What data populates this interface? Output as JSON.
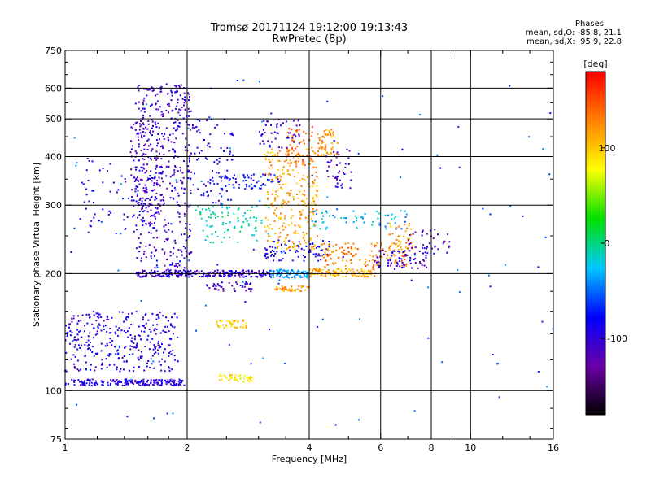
{
  "chart_data": {
    "type": "scatter",
    "title": "Tromsø 20171124 19:12:00-19:13:43",
    "subtitle": "RwPretec (8p)",
    "xlabel": "Frequency [MHz]",
    "ylabel": "Stationary phase Virtual Height [km]",
    "xscale": "log",
    "yscale": "log",
    "xlim": [
      1,
      16
    ],
    "ylim": [
      75,
      750
    ],
    "xticks": [
      1,
      2,
      4,
      6,
      8,
      10,
      16
    ],
    "yticks": [
      75,
      100,
      200,
      300,
      400,
      500,
      600,
      750
    ],
    "xgrid": [
      2,
      4,
      6,
      8,
      10
    ],
    "ygrid": [
      100,
      200,
      300,
      400,
      500,
      600
    ],
    "colorbar": {
      "title": "[deg]",
      "ticks": [
        -100,
        0,
        100
      ],
      "range": [
        -180,
        180
      ],
      "colors": [
        "#000000",
        "#6a00a8",
        "#0000ff",
        "#00c8ff",
        "#00e000",
        "#ffff00",
        "#ff8000",
        "#ff0000"
      ]
    },
    "phase_stats": {
      "header": "Phases",
      "line_O": "mean, sd,O: -85.8, 21.1",
      "line_X": "mean, sd,X:  95.9, 22.8"
    },
    "clusters": [
      {
        "f_min": 1.0,
        "f_max": 1.55,
        "h_min": 103,
        "h_max": 107,
        "phase": -95,
        "count": 110
      },
      {
        "f_min": 1.55,
        "f_max": 1.95,
        "h_min": 103,
        "h_max": 107,
        "phase": -95,
        "count": 80
      },
      {
        "f_min": 1.0,
        "f_max": 1.9,
        "h_min": 112,
        "h_max": 160,
        "phase": -95,
        "count": 320
      },
      {
        "f_min": 1.5,
        "f_max": 2.05,
        "h_min": 200,
        "h_max": 620,
        "phase": -105,
        "count": 420
      },
      {
        "f_min": 1.45,
        "f_max": 1.75,
        "h_min": 280,
        "h_max": 500,
        "phase": -110,
        "count": 150
      },
      {
        "f_min": 1.1,
        "f_max": 1.55,
        "h_min": 250,
        "h_max": 400,
        "phase": -95,
        "count": 60
      },
      {
        "f_min": 2.0,
        "f_max": 2.6,
        "h_min": 300,
        "h_max": 500,
        "phase": -95,
        "count": 90
      },
      {
        "f_min": 1.5,
        "f_max": 3.2,
        "h_min": 196,
        "h_max": 204,
        "phase": -100,
        "count": 220
      },
      {
        "f_min": 3.2,
        "f_max": 4.0,
        "h_min": 195,
        "h_max": 205,
        "phase": -40,
        "count": 90
      },
      {
        "f_min": 4.0,
        "f_max": 5.8,
        "h_min": 196,
        "h_max": 206,
        "phase": 110,
        "count": 110
      },
      {
        "f_min": 3.1,
        "f_max": 4.5,
        "h_min": 215,
        "h_max": 245,
        "phase": -90,
        "count": 80
      },
      {
        "f_min": 4.3,
        "f_max": 7.0,
        "h_min": 208,
        "h_max": 240,
        "phase": 130,
        "count": 120
      },
      {
        "f_min": 5.8,
        "f_max": 7.8,
        "h_min": 205,
        "h_max": 230,
        "phase": -105,
        "count": 70
      },
      {
        "f_min": 3.1,
        "f_max": 4.2,
        "h_min": 230,
        "h_max": 420,
        "phase": 115,
        "count": 260
      },
      {
        "f_min": 3.5,
        "f_max": 4.1,
        "h_min": 380,
        "h_max": 480,
        "phase": 140,
        "count": 60
      },
      {
        "f_min": 4.2,
        "f_max": 4.7,
        "h_min": 400,
        "h_max": 470,
        "phase": 125,
        "count": 60
      },
      {
        "f_min": 4.4,
        "f_max": 5.1,
        "h_min": 330,
        "h_max": 420,
        "phase": -110,
        "count": 40
      },
      {
        "f_min": 3.0,
        "f_max": 3.8,
        "h_min": 420,
        "h_max": 500,
        "phase": -105,
        "count": 50
      },
      {
        "f_min": 2.1,
        "f_max": 3.2,
        "h_min": 240,
        "h_max": 300,
        "phase": -10,
        "count": 90
      },
      {
        "f_min": 2.4,
        "f_max": 3.4,
        "h_min": 330,
        "h_max": 360,
        "phase": -80,
        "count": 60
      },
      {
        "f_min": 2.2,
        "f_max": 2.9,
        "h_min": 180,
        "h_max": 190,
        "phase": -110,
        "count": 40
      },
      {
        "f_min": 3.3,
        "f_max": 4.0,
        "h_min": 180,
        "h_max": 186,
        "phase": 120,
        "count": 40
      },
      {
        "f_min": 2.35,
        "f_max": 2.8,
        "h_min": 145,
        "h_max": 152,
        "phase": 100,
        "count": 40
      },
      {
        "f_min": 2.4,
        "f_max": 2.9,
        "h_min": 105,
        "h_max": 110,
        "phase": 85,
        "count": 40
      },
      {
        "f_min": 4.0,
        "f_max": 7.0,
        "h_min": 260,
        "h_max": 290,
        "phase": -30,
        "count": 60
      },
      {
        "f_min": 6.3,
        "f_max": 7.2,
        "h_min": 230,
        "h_max": 270,
        "phase": 120,
        "count": 40
      },
      {
        "f_min": 7.0,
        "f_max": 9.0,
        "h_min": 225,
        "h_max": 260,
        "phase": -110,
        "count": 40
      },
      {
        "f_min": 1.0,
        "f_max": 16.0,
        "h_min": 80,
        "h_max": 640,
        "phase": -60,
        "count": 120
      }
    ]
  }
}
